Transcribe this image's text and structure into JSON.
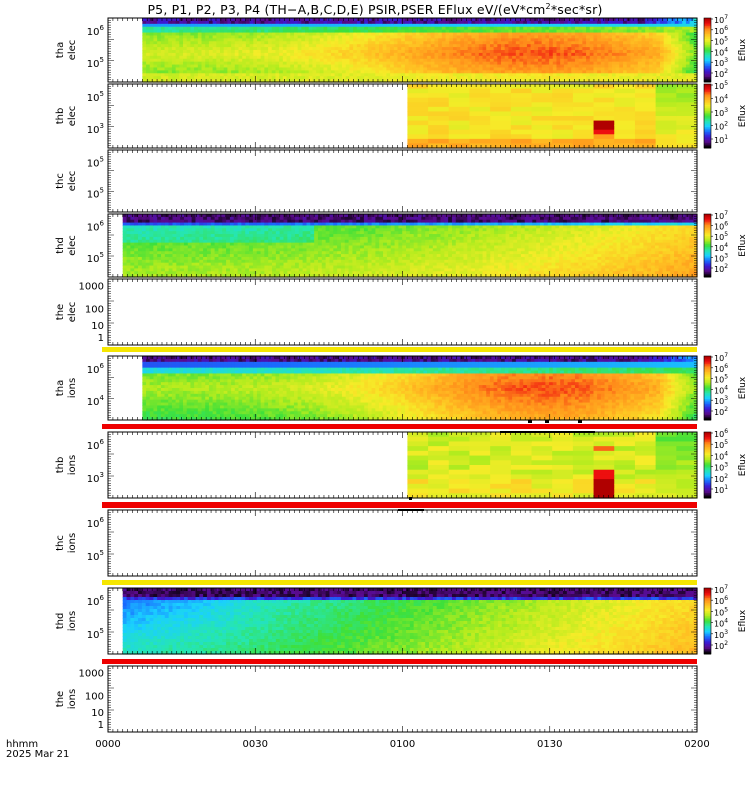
{
  "title": {
    "before": "P5, P1, P2, P3, P4 (TH−A,B,C,D,E) PSIR,PSER EFlux eV/(eV*cm",
    "sup": "2",
    "after": "*sec*sr)"
  },
  "time_axis": {
    "ticks": [
      "0000",
      "0030",
      "0100",
      "0130",
      "0200"
    ],
    "format_label": "hhmm",
    "date_label": "2025 Mar 21"
  },
  "chart_data": [
    {
      "type": "heatmap",
      "probe": "tha",
      "species": "elec",
      "ylabel": [
        "tha",
        "elec"
      ],
      "y_scale": "log",
      "ytick_labels": [
        "10^6",
        "10^5"
      ],
      "colorbar": {
        "label": "Eflux",
        "scale": "log",
        "ticks": [
          "10^7",
          "10^6",
          "10^5",
          "10^4",
          "10^3",
          "10^2"
        ]
      },
      "data_start": "00:07",
      "data_end": "02:00",
      "profile": "Cool (blue/purple) at top energies, broad green→orange band peaking near 01:30–01:45, fading to green by 02:00"
    },
    {
      "type": "heatmap",
      "probe": "thb",
      "species": "elec",
      "ylabel": [
        "thb",
        "elec"
      ],
      "y_scale": "log",
      "ytick_labels": [
        "10^5",
        "10^3"
      ],
      "colorbar": {
        "label": "Eflux",
        "scale": "log",
        "ticks": [
          "10^5",
          "10^4",
          "10^3",
          "10^2",
          "10^1"
        ]
      },
      "data_start": "01:01",
      "data_end": "02:00",
      "profile": "Mostly yellow; red/dark-red burst near 01:37–01:42; green after 01:52"
    },
    {
      "type": "heatmap",
      "probe": "thc",
      "species": "elec",
      "ylabel": [
        "thc",
        "elec"
      ],
      "y_scale": "log",
      "ytick_labels": [
        "10^5",
        "10^5"
      ],
      "empty": true
    },
    {
      "type": "heatmap",
      "probe": "thd",
      "species": "elec",
      "ylabel": [
        "thd",
        "elec"
      ],
      "y_scale": "log",
      "ytick_labels": [
        "10^6",
        "10^5"
      ],
      "colorbar": {
        "label": "Eflux",
        "scale": "log",
        "ticks": [
          "10^7",
          "10^6",
          "10^5",
          "10^4",
          "10^3",
          "10^2"
        ]
      },
      "data_start": "00:03",
      "data_end": "02:00",
      "profile": "Black/purple top band, green body warming to orange toward 02:00"
    },
    {
      "type": "heatmap",
      "probe": "the",
      "species": "elec",
      "ylabel": [
        "the",
        "elec"
      ],
      "y_scale": "log",
      "ytick_labels": [
        "1000",
        "100",
        "10",
        "1"
      ],
      "empty": true
    },
    {
      "type": "heatmap",
      "probe": "tha",
      "species": "ions",
      "ylabel": [
        "tha",
        "ions"
      ],
      "y_scale": "log",
      "ytick_labels": [
        "10^6",
        "10^4"
      ],
      "colorbar": {
        "label": "Eflux",
        "scale": "log",
        "ticks": [
          "10^7",
          "10^6",
          "10^5",
          "10^4",
          "10^3",
          "10^2"
        ]
      },
      "data_start": "00:07",
      "data_end": "02:00",
      "profile": "Blue/purple top, green→yellow→orange body peaking 01:30–01:45"
    },
    {
      "type": "heatmap",
      "probe": "thb",
      "species": "ions",
      "ylabel": [
        "thb",
        "ions"
      ],
      "y_scale": "log",
      "ytick_labels": [
        "10^6",
        "10^3"
      ],
      "colorbar": {
        "label": "Eflux",
        "scale": "log",
        "ticks": [
          "10^6",
          "10^5",
          "10^4",
          "10^3",
          "10^2",
          "10^1"
        ]
      },
      "data_start": "01:01",
      "data_end": "02:00",
      "profile": "Yellow/green; orange and dark-red block near 01:37–01:42 at low energies"
    },
    {
      "type": "heatmap",
      "probe": "thc",
      "species": "ions",
      "ylabel": [
        "thc",
        "ions"
      ],
      "y_scale": "log",
      "ytick_labels": [
        "10^6",
        "10^5"
      ],
      "empty": true
    },
    {
      "type": "heatmap",
      "probe": "thd",
      "species": "ions",
      "ylabel": [
        "thd",
        "ions"
      ],
      "y_scale": "log",
      "ytick_labels": [
        "10^6",
        "10^5"
      ],
      "colorbar": {
        "label": "Eflux",
        "scale": "log",
        "ticks": [
          "10^7",
          "10^6",
          "10^5",
          "10^4",
          "10^3",
          "10^2"
        ]
      },
      "data_start": "00:03",
      "data_end": "02:00",
      "profile": "Black/purple top, cyan/blue body on left turning green then yellow toward 02:00"
    },
    {
      "type": "heatmap",
      "probe": "the",
      "species": "ions",
      "ylabel": [
        "the",
        "ions"
      ],
      "y_scale": "log",
      "ytick_labels": [
        "1000",
        "100",
        "10",
        "1"
      ],
      "empty": true
    }
  ],
  "status_bars": [
    {
      "after_panel": 4,
      "color": "#f5e600"
    },
    {
      "after_panel": 5,
      "color": "#ee0000"
    },
    {
      "after_panel": 6,
      "color": "#ee0000"
    },
    {
      "after_panel": 7,
      "color": "#f5e600"
    },
    {
      "after_panel": 8,
      "color": "#ee0000"
    }
  ],
  "colors": {
    "axis": "#000000",
    "colormap": [
      "#000000",
      "#5a0a8c",
      "#3a1ad6",
      "#1a6cff",
      "#1ad0ff",
      "#26e6b0",
      "#3ee03a",
      "#b4ec1e",
      "#f6ec28",
      "#ffbe22",
      "#ff8c1a",
      "#f01010",
      "#b00000"
    ]
  }
}
